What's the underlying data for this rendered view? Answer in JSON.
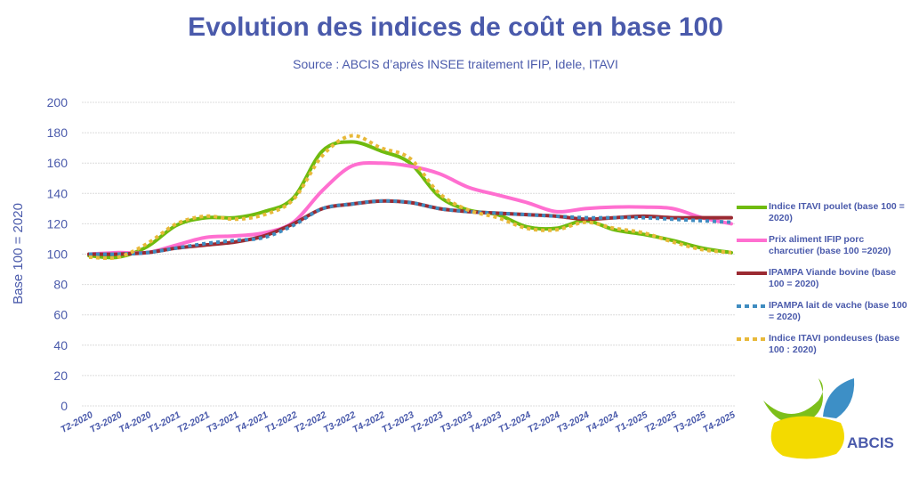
{
  "title": "Evolution des indices de coût en base 100",
  "subtitle": "Source : ABCIS d’après INSEE traitement IFIP, Idele, ITAVI",
  "logo_text": "ABCIS",
  "chart_data": {
    "type": "line",
    "title": "Evolution des indices de coût en base 100",
    "xlabel": "",
    "ylabel": "Base 100 = 2020",
    "ylim": [
      0,
      200
    ],
    "yticks": [
      0,
      20,
      40,
      60,
      80,
      100,
      120,
      140,
      160,
      180,
      200
    ],
    "grid": true,
    "legend": "right",
    "categories": [
      "T2-2020",
      "T3-2020",
      "T4-2020",
      "T1-2021",
      "T2-2021",
      "T3-2021",
      "T4-2021",
      "T1-2022",
      "T2-2022",
      "T3-2022",
      "T4-2022",
      "T1-2023",
      "T2-2023",
      "T3-2023",
      "T4-2023",
      "T1-2024",
      "T2-2024",
      "T3-2024",
      "T4-2024",
      "T1-2025",
      "T2-2025",
      "T3-2025",
      "T4-2025"
    ],
    "series": [
      {
        "name": "Indice ITAVI poulet (base 100 = 2020)",
        "color": "#6fbb0f",
        "style": "solid",
        "values": [
          99,
          98,
          105,
          119,
          124,
          124,
          128,
          137,
          168,
          174,
          168,
          160,
          138,
          129,
          126,
          118,
          117,
          122,
          116,
          113,
          109,
          104,
          101
        ]
      },
      {
        "name": "Prix aliment IFIP porc charcutier (base 100 =2020)",
        "color": "#ff6fd0",
        "style": "solid",
        "values": [
          100,
          101,
          101,
          106,
          111,
          112,
          114,
          121,
          142,
          158,
          160,
          158,
          153,
          144,
          139,
          134,
          128,
          130,
          131,
          131,
          130,
          124,
          120
        ]
      },
      {
        "name": "IPAMPA Viande bovine (base 100 = 2020)",
        "color": "#9b2a32",
        "style": "solid",
        "values": [
          100,
          100,
          101,
          104,
          106,
          108,
          112,
          120,
          130,
          133,
          135,
          134,
          130,
          128,
          127,
          126,
          125,
          123,
          124,
          125,
          124,
          124,
          124
        ]
      },
      {
        "name": "IPAMPA lait de vache (base 100 = 2020)",
        "color": "#3f8cc0",
        "style": "dotted",
        "values": [
          100,
          100,
          101,
          104,
          107,
          109,
          111,
          119,
          130,
          133,
          135,
          134,
          130,
          128,
          127,
          126,
          125,
          124,
          124,
          124,
          123,
          122,
          121
        ]
      },
      {
        "name": "Indice ITAVI pondeuses (base 100 : 2020)",
        "color": "#e8b93a",
        "style": "dotted",
        "values": [
          98,
          98,
          107,
          120,
          125,
          123,
          126,
          136,
          165,
          178,
          170,
          163,
          140,
          129,
          124,
          117,
          116,
          121,
          117,
          114,
          108,
          103,
          101
        ]
      }
    ]
  }
}
